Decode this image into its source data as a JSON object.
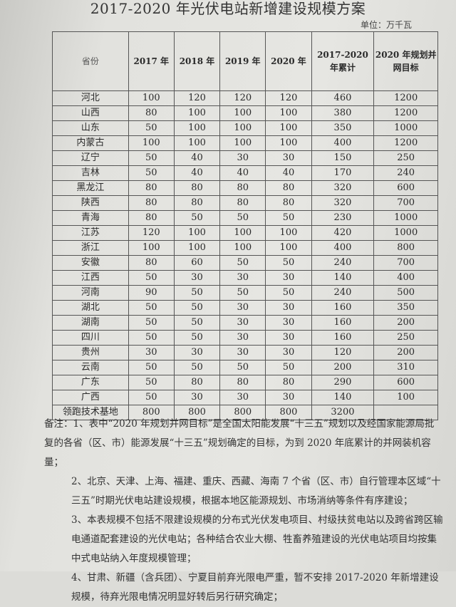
{
  "title": "2017-2020 年光伏电站新增建设规模方案",
  "unit": "单位：万千瓦",
  "table": {
    "headers": [
      "省份",
      "2017 年",
      "2018 年",
      "2019 年",
      "2020 年",
      "2017-2020 年累计",
      "2020 年规划并网目标"
    ],
    "rows": [
      [
        "河北",
        "100",
        "120",
        "120",
        "120",
        "460",
        "1200"
      ],
      [
        "山西",
        "80",
        "100",
        "100",
        "100",
        "380",
        "1200"
      ],
      [
        "山东",
        "50",
        "100",
        "100",
        "100",
        "350",
        "1000"
      ],
      [
        "内蒙古",
        "100",
        "100",
        "100",
        "100",
        "400",
        "1200"
      ],
      [
        "辽宁",
        "50",
        "40",
        "30",
        "30",
        "150",
        "250"
      ],
      [
        "吉林",
        "50",
        "40",
        "40",
        "40",
        "170",
        "240"
      ],
      [
        "黑龙江",
        "80",
        "80",
        "80",
        "80",
        "320",
        "600"
      ],
      [
        "陕西",
        "80",
        "80",
        "80",
        "80",
        "320",
        "700"
      ],
      [
        "青海",
        "80",
        "50",
        "50",
        "50",
        "230",
        "1000"
      ],
      [
        "江苏",
        "120",
        "100",
        "100",
        "100",
        "420",
        "1000"
      ],
      [
        "浙江",
        "100",
        "100",
        "100",
        "100",
        "400",
        "800"
      ],
      [
        "安徽",
        "80",
        "60",
        "50",
        "50",
        "240",
        "700"
      ],
      [
        "江西",
        "50",
        "30",
        "30",
        "30",
        "140",
        "400"
      ],
      [
        "河南",
        "90",
        "50",
        "50",
        "50",
        "240",
        "500"
      ],
      [
        "湖北",
        "50",
        "50",
        "30",
        "30",
        "160",
        "350"
      ],
      [
        "湖南",
        "50",
        "50",
        "30",
        "30",
        "160",
        "200"
      ],
      [
        "四川",
        "50",
        "50",
        "30",
        "30",
        "160",
        "250"
      ],
      [
        "贵州",
        "30",
        "30",
        "30",
        "30",
        "120",
        "200"
      ],
      [
        "云南",
        "50",
        "50",
        "50",
        "50",
        "200",
        "310"
      ],
      [
        "广东",
        "50",
        "80",
        "80",
        "80",
        "290",
        "600"
      ],
      [
        "广西",
        "50",
        "30",
        "30",
        "30",
        "140",
        "100"
      ],
      [
        "领跑技术基地",
        "800",
        "800",
        "800",
        "800",
        "3200",
        ""
      ]
    ]
  },
  "notes": {
    "label": "备注：",
    "items": [
      "1、表中“2020 年规划并网目标”是全国太阳能发展“十三五”规划以及经国家能源局批复的各省（区、市）能源发展“十三五”规划确定的目标，为到 2020 年底累计的并网装机容量；",
      "2、北京、天津、上海、福建、重庆、西藏、海南 7 个省（区、市）自行管理本区域“十三五”时期光伏电站建设规模，根据本地区能源规划、市场消纳等条件有序建设；",
      "3、本表规模不包括不限建设规模的分布式光伏发电项目、村级扶贫电站以及跨省跨区输电通道配套建设的光伏电站；各种结合农业大棚、牲畜养殖建设的光伏电站项目均按集中式电站纳入年度规模管理；",
      "4、甘肃、新疆（含兵团）、宁夏目前弃光限电严重，暂不安排 2017-2020 年新增建设规模，待弃光限电情况明显好转后另行研究确定；"
    ]
  }
}
